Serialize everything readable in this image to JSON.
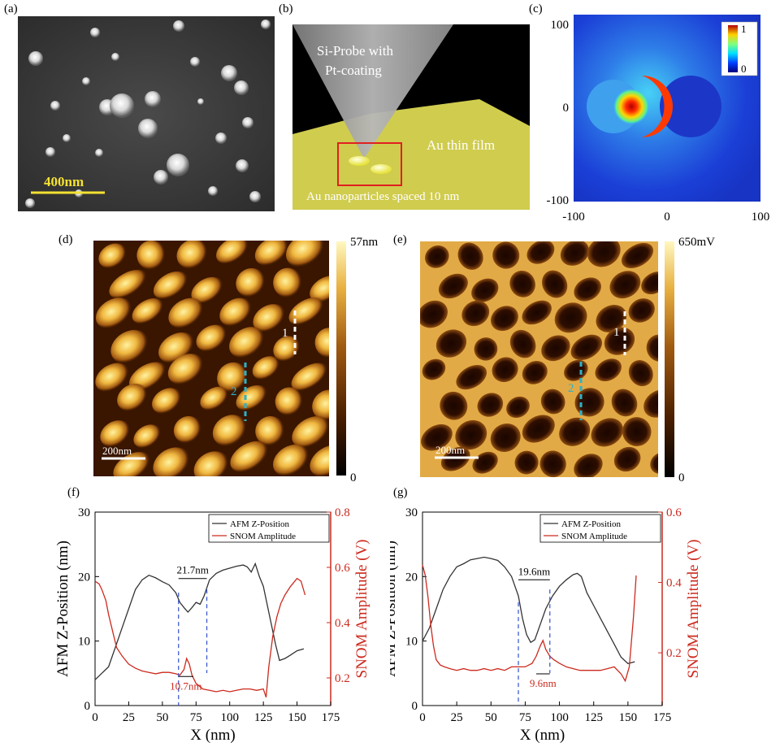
{
  "panels": {
    "a": {
      "label": "(a)",
      "scalebar": "400nm"
    },
    "b": {
      "label": "(b)",
      "probe_line1": "Si-Probe with",
      "probe_line2": "Pt-coating",
      "film": "Au thin film",
      "np": "Au nanoparticles spaced 10 nm"
    },
    "c": {
      "label": "(c)",
      "x_ticks": [
        "-100",
        "0",
        "100"
      ],
      "y_ticks": [
        "100",
        "0",
        "-100"
      ],
      "cbar_max": "1",
      "cbar_min": "0"
    },
    "d": {
      "label": "(d)",
      "scalebar": "200nm",
      "cbar_max": "57nm",
      "cbar_min": "0",
      "line1": "1",
      "line2": "2"
    },
    "e": {
      "label": "(e)",
      "scalebar": "200nm",
      "cbar_max": "650mV",
      "cbar_min": "0",
      "line1": "1",
      "line2": "2"
    },
    "f": {
      "label": "(f)"
    },
    "g": {
      "label": "(g)"
    }
  },
  "colors": {
    "afm": "#333333",
    "snom": "#cc2a1e",
    "cyan": "#2bb3c9",
    "blue_dash": "#3050c8"
  },
  "chart_data": [
    {
      "type": "line",
      "panel": "f",
      "xlabel": "X (nm)",
      "ylabel": "AFM Z-Position (nm)",
      "y2label": "SNOM Amplitude (V)",
      "xlim": [
        0,
        175
      ],
      "ylim": [
        0,
        30
      ],
      "y2lim": [
        0.1,
        0.8
      ],
      "x_ticks": [
        0,
        25,
        50,
        75,
        100,
        125,
        150,
        175
      ],
      "y_ticks": [
        0,
        10,
        20,
        30
      ],
      "y2_ticks": [
        0.2,
        0.4,
        0.6,
        0.8
      ],
      "legend": [
        "AFM Z-Position",
        "SNOM Amplitude"
      ],
      "legend_position": "top-right",
      "annotations": [
        "21.7nm",
        "10.7nm"
      ],
      "series": [
        {
          "name": "AFM Z-Position",
          "axis": "left",
          "x": [
            0,
            5,
            10,
            15,
            20,
            25,
            30,
            35,
            40,
            45,
            50,
            55,
            60,
            63,
            66,
            69,
            72,
            75,
            78,
            81,
            85,
            90,
            95,
            100,
            105,
            110,
            113,
            116,
            119,
            122,
            125,
            128,
            131,
            134,
            137,
            141,
            145,
            150,
            155
          ],
          "y": [
            4,
            5,
            6,
            9,
            12,
            15,
            18,
            19.5,
            20.2,
            19.8,
            19.2,
            18.7,
            17.5,
            16,
            15.2,
            14.5,
            15.2,
            16,
            15.7,
            17,
            19.5,
            20.5,
            21,
            21.3,
            21.6,
            21.8,
            21.5,
            20.7,
            22,
            20,
            18.5,
            15.5,
            12.5,
            9.5,
            7,
            7.3,
            7.8,
            8.5,
            8.8
          ]
        },
        {
          "name": "SNOM Amplitude",
          "axis": "right",
          "x": [
            0,
            3,
            5,
            8,
            10,
            13,
            16,
            20,
            25,
            30,
            35,
            40,
            45,
            50,
            55,
            60,
            63,
            66,
            68,
            70,
            72,
            75,
            80,
            85,
            90,
            95,
            100,
            105,
            110,
            115,
            120,
            125,
            127,
            129,
            132,
            135,
            138,
            141,
            145,
            150,
            153,
            156
          ],
          "y": [
            0.55,
            0.54,
            0.52,
            0.48,
            0.43,
            0.37,
            0.31,
            0.28,
            0.25,
            0.235,
            0.225,
            0.22,
            0.215,
            0.22,
            0.22,
            0.215,
            0.21,
            0.23,
            0.27,
            0.25,
            0.21,
            0.18,
            0.16,
            0.155,
            0.15,
            0.155,
            0.15,
            0.155,
            0.16,
            0.16,
            0.155,
            0.16,
            0.13,
            0.24,
            0.35,
            0.42,
            0.47,
            0.5,
            0.53,
            0.56,
            0.55,
            0.5
          ]
        }
      ]
    },
    {
      "type": "line",
      "panel": "g",
      "xlabel": "X (nm)",
      "ylabel": "AFM Z-Position (nm)",
      "y2label": "SNOM Amplitude (V)",
      "xlim": [
        0,
        175
      ],
      "ylim": [
        0,
        30
      ],
      "y2lim": [
        0.05,
        0.6
      ],
      "x_ticks": [
        0,
        25,
        50,
        75,
        100,
        125,
        150,
        175
      ],
      "y_ticks": [
        0,
        10,
        20,
        30
      ],
      "y2_ticks": [
        0.2,
        0.4,
        0.6
      ],
      "legend": [
        "AFM Z-Position",
        "SNOM Amplitude"
      ],
      "legend_position": "top-right",
      "annotations": [
        "19.6nm",
        "9.6nm"
      ],
      "series": [
        {
          "name": "AFM Z-Position",
          "axis": "left",
          "x": [
            0,
            5,
            10,
            15,
            20,
            25,
            30,
            35,
            40,
            45,
            50,
            55,
            60,
            65,
            70,
            73,
            76,
            79,
            82,
            85,
            90,
            95,
            100,
            105,
            110,
            113,
            116,
            120,
            125,
            130,
            135,
            140,
            145,
            150,
            155
          ],
          "y": [
            10,
            12,
            15,
            18,
            20,
            21.5,
            22,
            22.6,
            22.8,
            23,
            22.8,
            22.5,
            21.5,
            20,
            17,
            13.5,
            11,
            9.8,
            10.2,
            12,
            15,
            17,
            18.5,
            19.5,
            20.3,
            20.5,
            20,
            17.5,
            15.5,
            13.5,
            11.5,
            9.5,
            7.5,
            6.5,
            6.8
          ]
        },
        {
          "name": "SNOM Amplitude",
          "axis": "right",
          "x": [
            0,
            2,
            4,
            6,
            8,
            10,
            13,
            16,
            20,
            25,
            30,
            35,
            40,
            45,
            50,
            55,
            60,
            65,
            70,
            75,
            80,
            83,
            86,
            88,
            90,
            93,
            96,
            100,
            105,
            110,
            115,
            120,
            125,
            130,
            135,
            140,
            145,
            148,
            151,
            154,
            156
          ],
          "y": [
            0.45,
            0.42,
            0.36,
            0.28,
            0.22,
            0.18,
            0.165,
            0.16,
            0.155,
            0.15,
            0.155,
            0.15,
            0.15,
            0.155,
            0.15,
            0.155,
            0.15,
            0.16,
            0.16,
            0.16,
            0.17,
            0.19,
            0.22,
            0.235,
            0.21,
            0.19,
            0.18,
            0.17,
            0.16,
            0.155,
            0.15,
            0.15,
            0.15,
            0.15,
            0.155,
            0.16,
            0.14,
            0.12,
            0.16,
            0.3,
            0.42
          ]
        }
      ]
    }
  ]
}
